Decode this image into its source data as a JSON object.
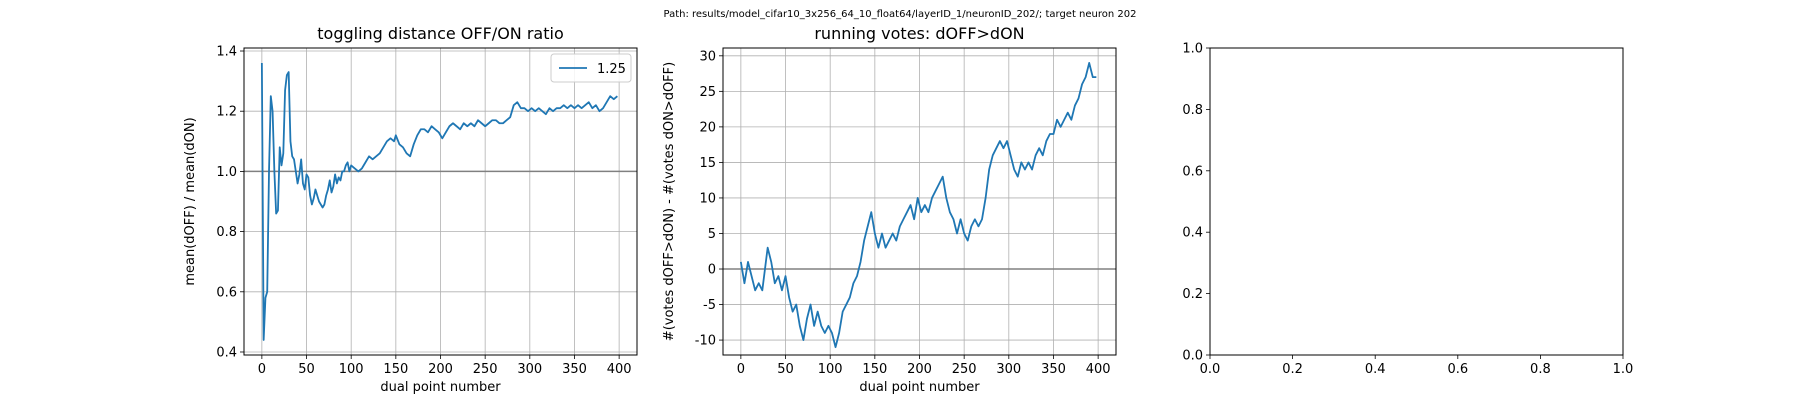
{
  "figure": {
    "suptitle": "Path: results/model_cifar10_3x256_64_10_float64/layerID_1/neuronID_202/; target neuron 202"
  },
  "colors": {
    "series": "#1f77b4",
    "grid": "#b0b0b0",
    "reference_line": "#808080"
  },
  "chart_data": [
    {
      "type": "line",
      "title": "toggling distance OFF/ON ratio",
      "xlabel": "dual point number",
      "ylabel": "mean(dOFF) / mean(dON)",
      "xlim": [
        -20,
        420
      ],
      "ylim": [
        0.39,
        1.41
      ],
      "xticks": [
        "0",
        "50",
        "100",
        "150",
        "200",
        "250",
        "300",
        "350",
        "400"
      ],
      "yticks": [
        "0.4",
        "0.6",
        "0.8",
        "1.0",
        "1.2",
        "1.4"
      ],
      "grid": true,
      "reference_line_y": 1.0,
      "legend": {
        "position": "top-right",
        "entries": [
          "1.25"
        ]
      },
      "series": [
        {
          "name": "1.25",
          "points": [
            [
              0,
              1.36
            ],
            [
              2,
              0.44
            ],
            [
              4,
              0.58
            ],
            [
              6,
              0.6
            ],
            [
              8,
              1.0
            ],
            [
              10,
              1.25
            ],
            [
              12,
              1.2
            ],
            [
              14,
              1.0
            ],
            [
              16,
              0.86
            ],
            [
              18,
              0.87
            ],
            [
              20,
              1.08
            ],
            [
              22,
              1.02
            ],
            [
              24,
              1.06
            ],
            [
              26,
              1.27
            ],
            [
              28,
              1.32
            ],
            [
              30,
              1.33
            ],
            [
              32,
              1.1
            ],
            [
              34,
              1.05
            ],
            [
              36,
              1.04
            ],
            [
              38,
              1.0
            ],
            [
              40,
              0.96
            ],
            [
              42,
              0.99
            ],
            [
              44,
              1.04
            ],
            [
              46,
              0.96
            ],
            [
              48,
              0.94
            ],
            [
              50,
              0.99
            ],
            [
              52,
              0.98
            ],
            [
              54,
              0.92
            ],
            [
              56,
              0.89
            ],
            [
              58,
              0.91
            ],
            [
              60,
              0.94
            ],
            [
              62,
              0.92
            ],
            [
              64,
              0.9
            ],
            [
              66,
              0.89
            ],
            [
              68,
              0.88
            ],
            [
              70,
              0.89
            ],
            [
              72,
              0.92
            ],
            [
              74,
              0.94
            ],
            [
              76,
              0.97
            ],
            [
              78,
              0.93
            ],
            [
              80,
              0.95
            ],
            [
              82,
              0.99
            ],
            [
              84,
              0.96
            ],
            [
              86,
              0.98
            ],
            [
              88,
              0.97
            ],
            [
              90,
              1.0
            ],
            [
              92,
              1.0
            ],
            [
              94,
              1.02
            ],
            [
              96,
              1.03
            ],
            [
              98,
              1.0
            ],
            [
              100,
              1.02
            ],
            [
              104,
              1.01
            ],
            [
              108,
              1.0
            ],
            [
              112,
              1.01
            ],
            [
              116,
              1.03
            ],
            [
              120,
              1.05
            ],
            [
              124,
              1.04
            ],
            [
              128,
              1.05
            ],
            [
              132,
              1.06
            ],
            [
              136,
              1.08
            ],
            [
              140,
              1.1
            ],
            [
              144,
              1.11
            ],
            [
              148,
              1.1
            ],
            [
              150,
              1.12
            ],
            [
              154,
              1.09
            ],
            [
              158,
              1.08
            ],
            [
              162,
              1.06
            ],
            [
              166,
              1.05
            ],
            [
              170,
              1.09
            ],
            [
              174,
              1.12
            ],
            [
              178,
              1.14
            ],
            [
              182,
              1.14
            ],
            [
              186,
              1.13
            ],
            [
              190,
              1.15
            ],
            [
              194,
              1.14
            ],
            [
              198,
              1.13
            ],
            [
              202,
              1.11
            ],
            [
              206,
              1.13
            ],
            [
              210,
              1.15
            ],
            [
              214,
              1.16
            ],
            [
              218,
              1.15
            ],
            [
              222,
              1.14
            ],
            [
              226,
              1.16
            ],
            [
              230,
              1.15
            ],
            [
              234,
              1.16
            ],
            [
              238,
              1.15
            ],
            [
              242,
              1.17
            ],
            [
              246,
              1.16
            ],
            [
              250,
              1.15
            ],
            [
              254,
              1.16
            ],
            [
              258,
              1.17
            ],
            [
              262,
              1.17
            ],
            [
              266,
              1.16
            ],
            [
              270,
              1.16
            ],
            [
              274,
              1.17
            ],
            [
              278,
              1.18
            ],
            [
              282,
              1.22
            ],
            [
              286,
              1.23
            ],
            [
              290,
              1.21
            ],
            [
              294,
              1.21
            ],
            [
              298,
              1.2
            ],
            [
              302,
              1.21
            ],
            [
              306,
              1.2
            ],
            [
              310,
              1.21
            ],
            [
              314,
              1.2
            ],
            [
              318,
              1.19
            ],
            [
              322,
              1.21
            ],
            [
              326,
              1.2
            ],
            [
              330,
              1.21
            ],
            [
              334,
              1.21
            ],
            [
              338,
              1.22
            ],
            [
              342,
              1.21
            ],
            [
              346,
              1.22
            ],
            [
              350,
              1.21
            ],
            [
              354,
              1.22
            ],
            [
              358,
              1.21
            ],
            [
              362,
              1.22
            ],
            [
              366,
              1.23
            ],
            [
              370,
              1.21
            ],
            [
              374,
              1.22
            ],
            [
              378,
              1.2
            ],
            [
              382,
              1.21
            ],
            [
              386,
              1.23
            ],
            [
              390,
              1.25
            ],
            [
              394,
              1.24
            ],
            [
              398,
              1.25
            ]
          ]
        }
      ]
    },
    {
      "type": "line",
      "title": "running votes: dOFF>dON",
      "xlabel": "dual point number",
      "ylabel": "#(votes dOFF>dON) - #(votes dON>dOFF)",
      "xlim": [
        -20,
        420
      ],
      "ylim": [
        -12.1,
        31.1
      ],
      "xticks": [
        "0",
        "50",
        "100",
        "150",
        "200",
        "250",
        "300",
        "350",
        "400"
      ],
      "yticks": [
        "-10",
        "-5",
        "0",
        "5",
        "10",
        "15",
        "20",
        "25",
        "30"
      ],
      "grid": true,
      "reference_line_y": 0,
      "legend": null,
      "series": [
        {
          "points": [
            [
              0,
              1
            ],
            [
              4,
              -2
            ],
            [
              8,
              1
            ],
            [
              12,
              -1
            ],
            [
              16,
              -3
            ],
            [
              20,
              -2
            ],
            [
              24,
              -3
            ],
            [
              28,
              1
            ],
            [
              30,
              3
            ],
            [
              34,
              1
            ],
            [
              38,
              -2
            ],
            [
              42,
              -1
            ],
            [
              46,
              -3
            ],
            [
              50,
              -1
            ],
            [
              54,
              -4
            ],
            [
              58,
              -6
            ],
            [
              62,
              -5
            ],
            [
              66,
              -8
            ],
            [
              70,
              -10
            ],
            [
              74,
              -7
            ],
            [
              78,
              -5
            ],
            [
              82,
              -8
            ],
            [
              86,
              -6
            ],
            [
              90,
              -8
            ],
            [
              94,
              -9
            ],
            [
              98,
              -8
            ],
            [
              102,
              -9
            ],
            [
              106,
              -11
            ],
            [
              110,
              -9
            ],
            [
              114,
              -6
            ],
            [
              118,
              -5
            ],
            [
              122,
              -4
            ],
            [
              126,
              -2
            ],
            [
              130,
              -1
            ],
            [
              134,
              1
            ],
            [
              138,
              4
            ],
            [
              142,
              6
            ],
            [
              146,
              8
            ],
            [
              150,
              5
            ],
            [
              154,
              3
            ],
            [
              158,
              5
            ],
            [
              162,
              3
            ],
            [
              166,
              4
            ],
            [
              170,
              5
            ],
            [
              174,
              4
            ],
            [
              178,
              6
            ],
            [
              182,
              7
            ],
            [
              186,
              8
            ],
            [
              190,
              9
            ],
            [
              194,
              7
            ],
            [
              198,
              10
            ],
            [
              202,
              8
            ],
            [
              206,
              9
            ],
            [
              210,
              8
            ],
            [
              214,
              10
            ],
            [
              218,
              11
            ],
            [
              222,
              12
            ],
            [
              226,
              13
            ],
            [
              230,
              10
            ],
            [
              234,
              8
            ],
            [
              238,
              7
            ],
            [
              242,
              5
            ],
            [
              246,
              7
            ],
            [
              250,
              5
            ],
            [
              254,
              4
            ],
            [
              258,
              6
            ],
            [
              262,
              7
            ],
            [
              266,
              6
            ],
            [
              270,
              7
            ],
            [
              274,
              10
            ],
            [
              278,
              14
            ],
            [
              282,
              16
            ],
            [
              286,
              17
            ],
            [
              290,
              18
            ],
            [
              294,
              17
            ],
            [
              298,
              18
            ],
            [
              302,
              16
            ],
            [
              306,
              14
            ],
            [
              310,
              13
            ],
            [
              314,
              15
            ],
            [
              318,
              14
            ],
            [
              322,
              15
            ],
            [
              326,
              14
            ],
            [
              330,
              16
            ],
            [
              334,
              17
            ],
            [
              338,
              16
            ],
            [
              342,
              18
            ],
            [
              346,
              19
            ],
            [
              350,
              19
            ],
            [
              354,
              21
            ],
            [
              358,
              20
            ],
            [
              362,
              21
            ],
            [
              366,
              22
            ],
            [
              370,
              21
            ],
            [
              374,
              23
            ],
            [
              378,
              24
            ],
            [
              382,
              26
            ],
            [
              386,
              27
            ],
            [
              390,
              29
            ],
            [
              394,
              27
            ],
            [
              398,
              27
            ]
          ]
        }
      ]
    },
    {
      "type": "line",
      "title": "",
      "xlabel": "",
      "ylabel": "",
      "xlim": [
        0,
        1
      ],
      "ylim": [
        0,
        1
      ],
      "xticks": [
        "0.0",
        "0.2",
        "0.4",
        "0.6",
        "0.8",
        "1.0"
      ],
      "yticks": [
        "0.0",
        "0.2",
        "0.4",
        "0.6",
        "0.8",
        "1.0"
      ],
      "grid": false,
      "legend": null,
      "series": []
    }
  ]
}
